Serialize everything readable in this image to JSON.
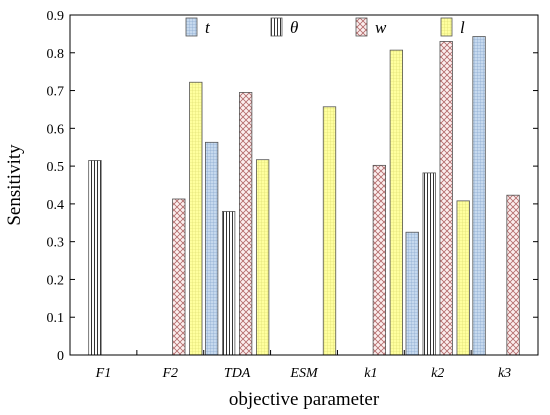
{
  "chart_data": {
    "type": "bar",
    "title": "",
    "xlabel": "objective parameter",
    "ylabel": "Sensitivity",
    "ylim": [
      0,
      0.9
    ],
    "yticks": [
      "0",
      "0.1",
      "0.2",
      "0.3",
      "0.4",
      "0.5",
      "0.6",
      "0.7",
      "0.8",
      "0.9"
    ],
    "categories": [
      "F1",
      "F2",
      "TDA",
      "ESM",
      "k1",
      "k2",
      "k3"
    ],
    "legend_position": "top-right",
    "grid": false,
    "series": [
      {
        "name": "t",
        "color": "#b9cde5",
        "pattern": "grid-blue",
        "values": [
          0,
          0,
          0.563,
          0,
          0,
          0.325,
          0.843
        ]
      },
      {
        "name": "θ",
        "color": "#ffffff",
        "pattern": "vertical-lines",
        "values": [
          0.515,
          0,
          0.38,
          0,
          0,
          0.482,
          0
        ]
      },
      {
        "name": "w",
        "color": "#f2dcdb",
        "pattern": "crosshatch-red",
        "values": [
          0,
          0.413,
          0.695,
          0,
          0.502,
          0.83,
          0.423
        ]
      },
      {
        "name": "l",
        "color": "#ffff99",
        "pattern": "grid-yellow",
        "values": [
          0,
          0.722,
          0.517,
          0.657,
          0.807,
          0.408,
          0
        ]
      }
    ]
  }
}
